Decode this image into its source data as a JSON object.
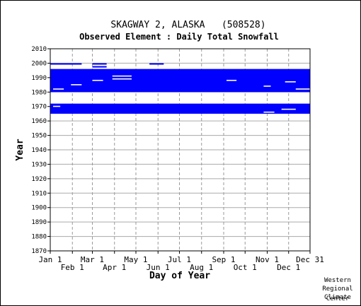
{
  "chart_data": {
    "type": "heatmap",
    "title": "SKAGWAY 2, ALASKA   (508528)",
    "subtitle": "Observed Element : Daily Total Snowfall",
    "xlabel": "Day of Year",
    "ylabel": "Year",
    "xlim": [
      1,
      365
    ],
    "ylim": [
      1870,
      2010
    ],
    "y_ticks": [
      1870,
      1880,
      1890,
      1900,
      1910,
      1920,
      1930,
      1940,
      1950,
      1960,
      1970,
      1980,
      1990,
      2000,
      2010
    ],
    "x_ticks_top_row": [
      {
        "label": "Jan 1",
        "day": 1
      },
      {
        "label": "Mar 1",
        "day": 60
      },
      {
        "label": "May 1",
        "day": 121
      },
      {
        "label": "Jul 1",
        "day": 182
      },
      {
        "label": "Sep 1",
        "day": 244
      },
      {
        "label": "Nov 1",
        "day": 305
      },
      {
        "label": "Dec 31",
        "day": 365
      }
    ],
    "x_ticks_bottom_row": [
      {
        "label": "Feb 1",
        "day": 32
      },
      {
        "label": "Apr 1",
        "day": 91
      },
      {
        "label": "Jun 1",
        "day": 152
      },
      {
        "label": "Aug 1",
        "day": 213
      },
      {
        "label": "Oct 1",
        "day": 274
      },
      {
        "label": "Dec 1",
        "day": 335
      }
    ],
    "grid": true,
    "series_color": "#0000ff",
    "coverage_blocks": [
      {
        "d0": 1,
        "d1": 365,
        "y0": 1965,
        "y1": 1972
      },
      {
        "d0": 1,
        "d1": 365,
        "y0": 1980,
        "y1": 1996
      },
      {
        "d0": 1,
        "d1": 45,
        "y0": 1999,
        "y1": 2000
      },
      {
        "d0": 60,
        "d1": 80,
        "y0": 1999,
        "y1": 2000
      },
      {
        "d0": 140,
        "d1": 160,
        "y0": 1999,
        "y1": 2000
      },
      {
        "d0": 60,
        "d1": 80,
        "y0": 1997,
        "y1": 1998
      }
    ],
    "gap_marks": [
      {
        "d0": 5,
        "d1": 20,
        "year": 1982
      },
      {
        "d0": 30,
        "d1": 45,
        "year": 1985
      },
      {
        "d0": 88,
        "d1": 115,
        "year": 1989
      },
      {
        "d0": 88,
        "d1": 115,
        "year": 1991
      },
      {
        "d0": 60,
        "d1": 75,
        "year": 1988
      },
      {
        "d0": 248,
        "d1": 262,
        "year": 1988
      },
      {
        "d0": 300,
        "d1": 310,
        "year": 1984
      },
      {
        "d0": 330,
        "d1": 345,
        "year": 1987
      },
      {
        "d0": 345,
        "d1": 365,
        "year": 1982
      },
      {
        "d0": 300,
        "d1": 315,
        "year": 1966
      },
      {
        "d0": 325,
        "d1": 345,
        "year": 1968
      },
      {
        "d0": 5,
        "d1": 15,
        "year": 1970
      }
    ]
  },
  "credit": {
    "line1": "Western",
    "line2": "Regional",
    "line3": "Climate",
    "line4": "Center"
  }
}
